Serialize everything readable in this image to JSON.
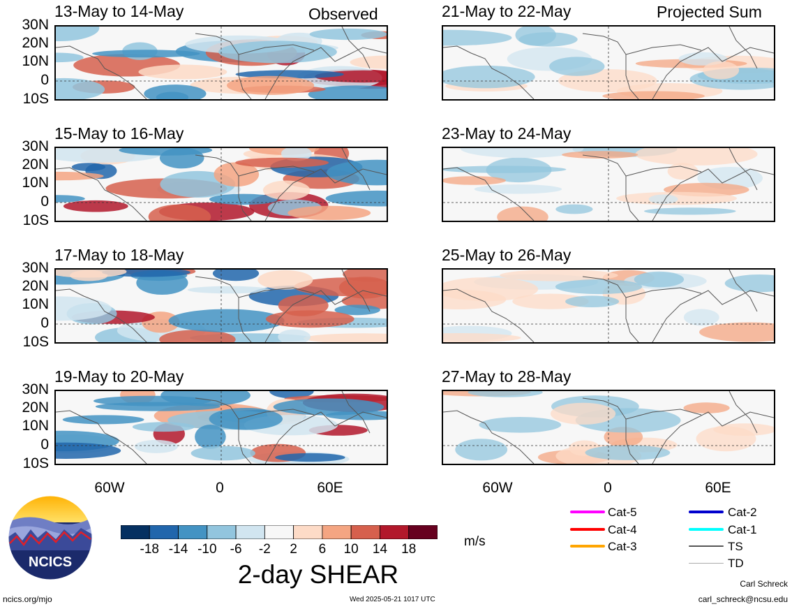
{
  "header": {
    "observed_label": "Observed",
    "projected_label": "Projected Sum"
  },
  "panels": {
    "left": [
      {
        "title": "13-May to 14-May"
      },
      {
        "title": "15-May to 16-May"
      },
      {
        "title": "17-May to 18-May"
      },
      {
        "title": "19-May to 20-May"
      }
    ],
    "right": [
      {
        "title": "21-May to 22-May"
      },
      {
        "title": "23-May to 24-May"
      },
      {
        "title": "25-May to 26-May"
      },
      {
        "title": "27-May to 28-May"
      }
    ]
  },
  "lat_labels": [
    "30N",
    "20N",
    "10N",
    "0",
    "10S"
  ],
  "lon_labels": [
    "60W",
    "0",
    "60E"
  ],
  "colorbar": {
    "ticks": [
      "-18",
      "-14",
      "-10",
      "-6",
      "-2",
      "2",
      "6",
      "10",
      "14",
      "18"
    ],
    "colors": [
      "#053061",
      "#2166ac",
      "#4393c3",
      "#92c5de",
      "#d1e5f0",
      "#f7f7f7",
      "#fddbc7",
      "#f4a582",
      "#d6604d",
      "#b2182b",
      "#67001f"
    ],
    "units": "m/s",
    "title": "2-day SHEAR"
  },
  "legend": [
    {
      "label": "Cat-5",
      "color": "#ff00ff"
    },
    {
      "label": "Cat-4",
      "color": "#ff0000"
    },
    {
      "label": "Cat-3",
      "color": "#ffa500"
    },
    {
      "label": "Cat-2",
      "color": "#0000cd"
    },
    {
      "label": "Cat-1",
      "color": "#00ffff"
    },
    {
      "label": "TS",
      "color": "#555555"
    },
    {
      "label": "TD",
      "color": "#aaaaaa"
    }
  ],
  "logo": {
    "text": "NCICS"
  },
  "footer": {
    "url": "ncics.org/mjo",
    "timestamp": "Wed 2025-05-21 1017 UTC",
    "author": "Carl Schreck",
    "email": "carl_schreck@ncsu.edu"
  }
}
